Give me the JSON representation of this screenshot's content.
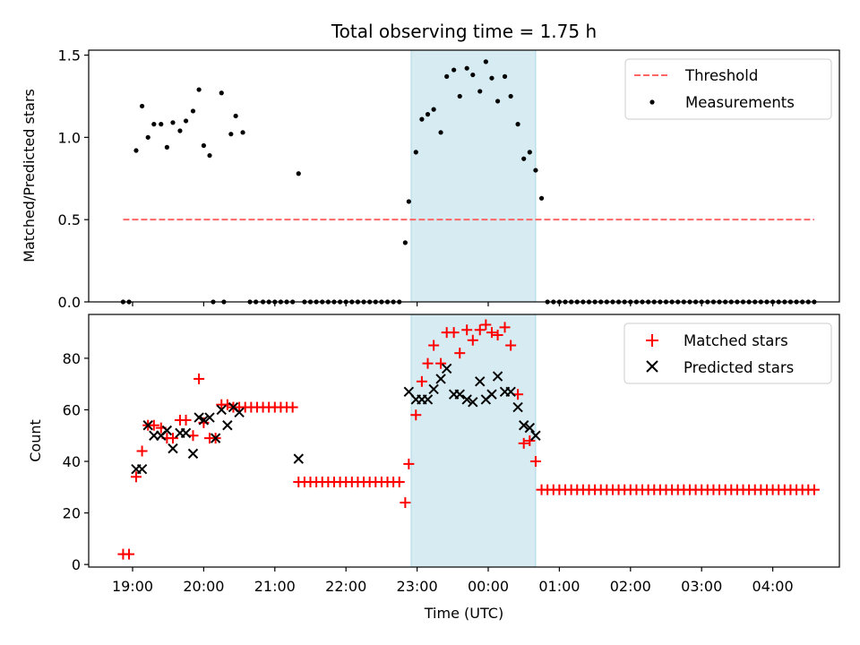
{
  "chart_data": [
    {
      "type": "scatter",
      "title": "Total observing time = 1.75 h",
      "ylabel": "Matched/Predicted stars",
      "xlabel": "",
      "ylim": [
        0,
        1.53
      ],
      "y_ticks": [
        0.0,
        0.5,
        1.0,
        1.5
      ],
      "y_tick_labels": [
        "0.0",
        "0.5",
        "1.0",
        "1.5"
      ],
      "shaded_span": [
        "22:55",
        "00:40"
      ],
      "span_color": "#add8e6",
      "threshold": {
        "label": "Threshold",
        "value": 0.5,
        "x_range": [
          "18:52",
          "04:35"
        ],
        "color": "#ff6666"
      },
      "measurements": {
        "label": "Measurements",
        "color": "#000000",
        "x": [
          "18:52",
          "18:57",
          "19:03",
          "19:08",
          "19:13",
          "19:18",
          "19:24",
          "19:29",
          "19:34",
          "19:40",
          "19:45",
          "19:51",
          "19:56",
          "20:00",
          "20:05",
          "20:08",
          "20:15",
          "20:17",
          "20:23",
          "20:27",
          "20:33",
          "20:39",
          "20:44",
          "20:50",
          "20:55",
          "21:00",
          "21:05",
          "21:10",
          "21:15",
          "21:20",
          "21:25",
          "21:30",
          "21:35",
          "21:40",
          "21:45",
          "21:50",
          "21:55",
          "22:00",
          "22:05",
          "22:10",
          "22:15",
          "22:20",
          "22:25",
          "22:30",
          "22:35",
          "22:40",
          "22:45",
          "22:50",
          "22:53",
          "22:59",
          "23:04",
          "23:09",
          "23:14",
          "23:20",
          "23:25",
          "23:31",
          "23:36",
          "23:42",
          "23:47",
          "23:53",
          "23:58",
          "00:03",
          "00:08",
          "00:14",
          "00:19",
          "00:25",
          "00:30",
          "00:35",
          "00:40",
          "00:45",
          "00:50",
          "00:55",
          "01:00",
          "01:05",
          "01:10",
          "01:15",
          "01:20",
          "01:25",
          "01:30",
          "01:35",
          "01:40",
          "01:45",
          "01:50",
          "01:55",
          "02:00",
          "02:05",
          "02:10",
          "02:15",
          "02:20",
          "02:25",
          "02:30",
          "02:35",
          "02:40",
          "02:45",
          "02:50",
          "02:55",
          "03:00",
          "03:05",
          "03:10",
          "03:15",
          "03:20",
          "03:25",
          "03:30",
          "03:35",
          "03:40",
          "03:45",
          "03:50",
          "03:55",
          "04:00",
          "04:05",
          "04:10",
          "04:15",
          "04:20",
          "04:25",
          "04:30",
          "04:35"
        ],
        "y": [
          0,
          0,
          0.92,
          1.19,
          1.0,
          1.08,
          1.08,
          0.94,
          1.09,
          1.04,
          1.1,
          1.16,
          1.29,
          0.95,
          0.89,
          0,
          1.27,
          0,
          1.02,
          1.13,
          1.03,
          0,
          0,
          0,
          0,
          0,
          0,
          0,
          0,
          0.78,
          0,
          0,
          0,
          0,
          0,
          0,
          0,
          0,
          0,
          0,
          0,
          0,
          0,
          0,
          0,
          0,
          0,
          0.36,
          0.61,
          0.91,
          1.11,
          1.14,
          1.17,
          1.03,
          1.37,
          1.41,
          1.25,
          1.42,
          1.38,
          1.28,
          1.46,
          1.36,
          1.22,
          1.37,
          1.25,
          1.08,
          0.87,
          0.91,
          0.8,
          0.63,
          0,
          0,
          0,
          0,
          0,
          0,
          0,
          0,
          0,
          0,
          0,
          0,
          0,
          0,
          0,
          0,
          0,
          0,
          0,
          0,
          0,
          0,
          0,
          0,
          0,
          0,
          0,
          0,
          0,
          0,
          0,
          0,
          0,
          0,
          0,
          0,
          0,
          0,
          0,
          0,
          0,
          0,
          0,
          0,
          0,
          0
        ]
      },
      "legend_position": "upper right"
    },
    {
      "type": "scatter",
      "xlabel": "Time (UTC)",
      "ylabel": "Count",
      "ylim": [
        -1,
        97
      ],
      "y_ticks": [
        0,
        20,
        40,
        60,
        80
      ],
      "y_tick_labels": [
        "0",
        "20",
        "40",
        "60",
        "80"
      ],
      "x_ticks": [
        "19:00",
        "20:00",
        "21:00",
        "22:00",
        "23:00",
        "00:00",
        "01:00",
        "02:00",
        "03:00",
        "04:00"
      ],
      "x_tick_labels": [
        "19:00",
        "20:00",
        "21:00",
        "22:00",
        "23:00",
        "00:00",
        "01:00",
        "02:00",
        "03:00",
        "04:00"
      ],
      "shaded_span": [
        "22:55",
        "00:40"
      ],
      "span_color": "#add8e6",
      "series": [
        {
          "name": "Matched stars",
          "marker": "+",
          "color": "#ff0000",
          "x": [
            "18:52",
            "18:57",
            "19:03",
            "19:08",
            "19:13",
            "19:18",
            "19:24",
            "19:29",
            "19:34",
            "19:40",
            "19:45",
            "19:51",
            "19:56",
            "20:00",
            "20:05",
            "20:10",
            "20:15",
            "20:20",
            "20:25",
            "20:30",
            "20:35",
            "20:40",
            "20:45",
            "20:50",
            "20:55",
            "21:00",
            "21:05",
            "21:10",
            "21:15",
            "21:20",
            "21:25",
            "21:30",
            "21:35",
            "21:40",
            "21:45",
            "21:50",
            "21:55",
            "22:00",
            "22:05",
            "22:10",
            "22:15",
            "22:20",
            "22:25",
            "22:30",
            "22:35",
            "22:40",
            "22:45",
            "22:50",
            "22:53",
            "22:59",
            "23:04",
            "23:09",
            "23:14",
            "23:20",
            "23:25",
            "23:31",
            "23:36",
            "23:42",
            "23:47",
            "23:53",
            "23:58",
            "00:03",
            "00:08",
            "00:14",
            "00:19",
            "00:25",
            "00:30",
            "00:35",
            "00:40",
            "00:45",
            "00:50",
            "00:55",
            "01:00",
            "01:05",
            "01:10",
            "01:15",
            "01:20",
            "01:25",
            "01:30",
            "01:35",
            "01:40",
            "01:45",
            "01:50",
            "01:55",
            "02:00",
            "02:05",
            "02:10",
            "02:15",
            "02:20",
            "02:25",
            "02:30",
            "02:35",
            "02:40",
            "02:45",
            "02:50",
            "02:55",
            "03:00",
            "03:05",
            "03:10",
            "03:15",
            "03:20",
            "03:25",
            "03:30",
            "03:35",
            "03:40",
            "03:45",
            "03:50",
            "03:55",
            "04:00",
            "04:05",
            "04:10",
            "04:15",
            "04:20",
            "04:25",
            "04:30",
            "04:35"
          ],
          "y": [
            4,
            4,
            34,
            44,
            54,
            54,
            53,
            49,
            49,
            56,
            56,
            50,
            72,
            55,
            49,
            49,
            62,
            62,
            61,
            61,
            61,
            61,
            61,
            61,
            61,
            61,
            61,
            61,
            61,
            32,
            32,
            32,
            32,
            32,
            32,
            32,
            32,
            32,
            32,
            32,
            32,
            32,
            32,
            32,
            32,
            32,
            32,
            24,
            39,
            58,
            71,
            78,
            85,
            78,
            90,
            90,
            82,
            91,
            87,
            91,
            93,
            90,
            89,
            92,
            85,
            66,
            47,
            48,
            40,
            29,
            29,
            29,
            29,
            29,
            29,
            29,
            29,
            29,
            29,
            29,
            29,
            29,
            29,
            29,
            29,
            29,
            29,
            29,
            29,
            29,
            29,
            29,
            29,
            29,
            29,
            29,
            29,
            29,
            29,
            29,
            29,
            29,
            29,
            29,
            29,
            29,
            29,
            29,
            29,
            29,
            29,
            29,
            29,
            29,
            29,
            29
          ]
        },
        {
          "name": "Predicted stars",
          "marker": "x",
          "color": "#000000",
          "x": [
            "19:03",
            "19:08",
            "19:13",
            "19:18",
            "19:24",
            "19:29",
            "19:34",
            "19:40",
            "19:45",
            "19:51",
            "19:56",
            "20:00",
            "20:05",
            "20:10",
            "20:15",
            "20:20",
            "20:25",
            "20:30",
            "21:20",
            "22:53",
            "22:59",
            "23:04",
            "23:09",
            "23:14",
            "23:20",
            "23:25",
            "23:31",
            "23:36",
            "23:42",
            "23:47",
            "23:53",
            "23:58",
            "00:03",
            "00:08",
            "00:14",
            "00:19",
            "00:25",
            "00:30",
            "00:35",
            "00:40"
          ],
          "y": [
            37,
            37,
            54,
            50,
            50,
            52,
            45,
            51,
            51,
            43,
            57,
            56,
            57,
            49,
            60,
            54,
            61,
            59,
            41,
            67,
            64,
            64,
            64,
            68,
            72,
            76,
            66,
            66,
            64,
            63,
            71,
            64,
            66,
            73,
            67,
            67,
            61,
            54,
            53,
            50
          ]
        }
      ],
      "legend_position": "upper right"
    }
  ]
}
